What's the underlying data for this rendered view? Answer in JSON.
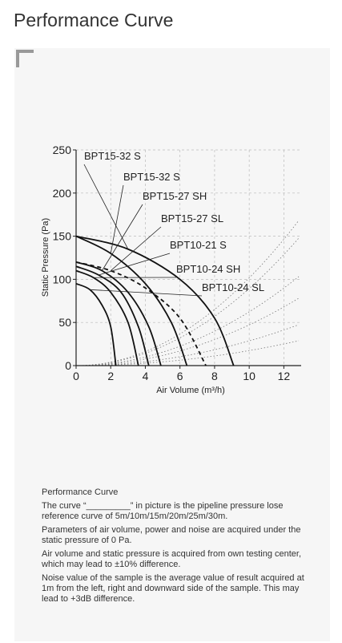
{
  "title": "Performance Curve",
  "chart_data": {
    "type": "line",
    "y_label": "Static Pressure (Pa)",
    "x_label": "Air Volume (m³/h)",
    "xlim": [
      0,
      13
    ],
    "ylim": [
      0,
      250
    ],
    "xticks": [
      0,
      2,
      4,
      6,
      8,
      10,
      12
    ],
    "yticks": [
      0,
      50,
      100,
      150,
      200,
      250
    ],
    "grid": true,
    "series": [
      {
        "name": "BPT15-32 S",
        "color": "#111111",
        "x": [
          0,
          3,
          6,
          8,
          9.1
        ],
        "values": [
          150,
          135,
          100,
          55,
          0
        ]
      },
      {
        "name": "BPT15-32 S",
        "color": "#111111",
        "x": [
          0,
          2,
          4,
          5.5,
          6.4
        ],
        "values": [
          150,
          130,
          95,
          50,
          0
        ]
      },
      {
        "name": "BPT15-27 SH",
        "color": "#111111",
        "x": [
          0,
          1.5,
          3,
          4.2,
          4.9
        ],
        "values": [
          120,
          110,
          85,
          45,
          0
        ]
      },
      {
        "name": "BPT15-27 SL",
        "color": "#111111",
        "dashed": true,
        "x": [
          0,
          2,
          4,
          6,
          7.5
        ],
        "values": [
          120,
          110,
          90,
          55,
          0
        ]
      },
      {
        "name": "BPT10-21 S",
        "color": "#111111",
        "x": [
          0,
          1.3,
          2.6,
          3.6,
          4.2
        ],
        "values": [
          115,
          105,
          85,
          45,
          0
        ]
      },
      {
        "name": "BPT10-24 SH",
        "color": "#111111",
        "x": [
          0,
          1,
          2,
          3,
          3.6
        ],
        "values": [
          110,
          102,
          85,
          50,
          0
        ]
      },
      {
        "name": "BPT10-24 SL",
        "color": "#111111",
        "x": [
          0,
          0.8,
          1.5,
          2,
          2.3
        ],
        "values": [
          95,
          88,
          70,
          45,
          0
        ]
      }
    ]
  },
  "notes": {
    "heading": "Performance Curve",
    "paragraphs": [
      "The curve “_________” in picture is the pipeline pressure lose reference curve of 5m/10m/15m/20m/25m/30m.",
      "Parameters of air volume, power and noise are acquired under the static pressure of 0 Pa.",
      "Air volume and static pressure is acquired from own testing center, which may lead to ±10% difference.",
      "Noise value of the sample is the average value of result acquired at 1m from the left, right and downward side of the sample. This may lead to +3dB difference."
    ]
  }
}
